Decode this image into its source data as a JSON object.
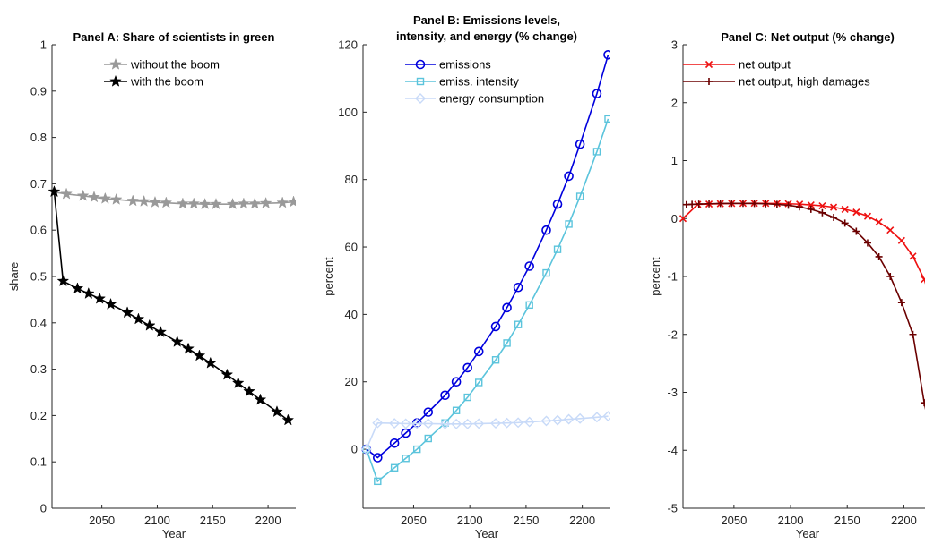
{
  "chart_data": [
    {
      "type": "line",
      "title": "Panel A: Share of scientists in green",
      "xlabel": "Year",
      "ylabel": "share",
      "xlim": [
        2005,
        2225
      ],
      "ylim": [
        0,
        1
      ],
      "xticks": [
        2050,
        2100,
        2150,
        2200
      ],
      "yticks": [
        0,
        0.1,
        0.2,
        0.3,
        0.4,
        0.5,
        0.6,
        0.7,
        0.8,
        0.9,
        1
      ],
      "ytick_labels": [
        "0",
        "0.1",
        "0.2",
        "0.3",
        "0.4",
        "0.5",
        "0.6",
        "0.7",
        "0.8",
        "0.9",
        "1"
      ],
      "legend_position": "top",
      "series": [
        {
          "name": "without the boom",
          "color": "#999999",
          "marker": "star",
          "x": [
            2007,
            2018,
            2033,
            2043,
            2053,
            2063,
            2078,
            2088,
            2098,
            2108,
            2123,
            2133,
            2143,
            2153,
            2168,
            2178,
            2188,
            2198,
            2213,
            2223
          ],
          "y": [
            0.682,
            0.678,
            0.674,
            0.671,
            0.668,
            0.666,
            0.663,
            0.662,
            0.66,
            0.659,
            0.657,
            0.657,
            0.656,
            0.656,
            0.656,
            0.657,
            0.657,
            0.658,
            0.659,
            0.661
          ]
        },
        {
          "name": "with the boom",
          "color": "#000000",
          "marker": "star",
          "x": [
            2007,
            2015,
            2028,
            2038,
            2048,
            2058,
            2073,
            2083,
            2093,
            2103,
            2118,
            2128,
            2138,
            2148,
            2163,
            2173,
            2183,
            2193,
            2208,
            2218
          ],
          "y": [
            0.683,
            0.49,
            0.474,
            0.463,
            0.452,
            0.44,
            0.422,
            0.408,
            0.394,
            0.38,
            0.359,
            0.344,
            0.329,
            0.313,
            0.288,
            0.27,
            0.252,
            0.234,
            0.208,
            0.19
          ]
        }
      ]
    },
    {
      "type": "line",
      "title": "Panel B: Emissions levels, intensity, and energy (% change)",
      "title_lines": [
        "Panel B: Emissions levels,",
        "intensity, and energy (% change)"
      ],
      "xlabel": "Year",
      "ylabel": "percent",
      "xlim": [
        2005,
        2225
      ],
      "ylim": [
        -17.5,
        120
      ],
      "xticks": [
        2050,
        2100,
        2150,
        2200
      ],
      "yticks": [
        0,
        20,
        40,
        60,
        80,
        100,
        120
      ],
      "ytick_labels": [
        "0",
        "20",
        "40",
        "60",
        "80",
        "100",
        "120"
      ],
      "legend_position": "top-left",
      "series": [
        {
          "name": "emissions",
          "color": "#0000dd",
          "marker": "circle",
          "x": [
            2008,
            2018,
            2033,
            2043,
            2053,
            2063,
            2078,
            2088,
            2098,
            2108,
            2123,
            2133,
            2143,
            2153,
            2168,
            2178,
            2188,
            2198,
            2213,
            2223
          ],
          "y": [
            0,
            -2.5,
            1.8,
            4.8,
            7.8,
            11,
            16,
            20,
            24.2,
            29,
            36.4,
            42,
            48,
            54.3,
            65,
            72.7,
            81,
            90.5,
            105.5,
            117
          ]
        },
        {
          "name": "emiss. intensity",
          "color": "#5bc4dc",
          "marker": "square",
          "x": [
            2008,
            2018,
            2033,
            2043,
            2053,
            2063,
            2078,
            2088,
            2098,
            2108,
            2123,
            2133,
            2143,
            2153,
            2168,
            2178,
            2188,
            2198,
            2213,
            2223
          ],
          "y": [
            0,
            -9.5,
            -5.5,
            -2.7,
            0,
            3.2,
            7.8,
            11.5,
            15.4,
            19.8,
            26.5,
            31.5,
            37,
            42.8,
            52.3,
            59.3,
            66.8,
            75,
            88.3,
            98
          ]
        },
        {
          "name": "energy consumption",
          "color": "#c8daf8",
          "marker": "diamond",
          "x": [
            2008,
            2018,
            2033,
            2043,
            2053,
            2063,
            2078,
            2088,
            2098,
            2108,
            2123,
            2133,
            2143,
            2153,
            2168,
            2178,
            2188,
            2198,
            2213,
            2223
          ],
          "y": [
            0,
            7.8,
            7.7,
            7.6,
            7.6,
            7.6,
            7.5,
            7.5,
            7.5,
            7.6,
            7.7,
            7.8,
            7.9,
            8.1,
            8.4,
            8.6,
            8.9,
            9.1,
            9.5,
            9.8
          ]
        }
      ]
    },
    {
      "type": "line",
      "title": "Panel C: Net output (% change)",
      "xlabel": "Year",
      "ylabel": "percent",
      "xlim": [
        2005,
        2225
      ],
      "ylim": [
        -5,
        3
      ],
      "xticks": [
        2050,
        2100,
        2150,
        2200
      ],
      "yticks": [
        -5,
        -4,
        -3,
        -2,
        -1,
        0,
        1,
        2,
        3
      ],
      "ytick_labels": [
        "-5",
        "-4",
        "-3",
        "-2",
        "-1",
        "0",
        "1",
        "2",
        "3"
      ],
      "legend_position": "top-left",
      "series": [
        {
          "name": "net output",
          "color": "#ee1111",
          "marker": "x",
          "x": [
            2005,
            2018,
            2028,
            2038,
            2048,
            2058,
            2068,
            2078,
            2088,
            2098,
            2108,
            2118,
            2128,
            2138,
            2148,
            2158,
            2168,
            2178,
            2188,
            2198,
            2208,
            2218,
            2225
          ],
          "y": [
            0,
            0.245,
            0.25,
            0.255,
            0.26,
            0.262,
            0.263,
            0.262,
            0.26,
            0.255,
            0.248,
            0.235,
            0.22,
            0.195,
            0.16,
            0.11,
            0.04,
            -0.06,
            -0.2,
            -0.38,
            -0.65,
            -1.05,
            -1.5
          ]
        },
        {
          "name": "net output, high damages",
          "color": "#6b0000",
          "marker": "plus",
          "x": [
            2008,
            2013,
            2019,
            2028,
            2038,
            2048,
            2058,
            2068,
            2078,
            2088,
            2098,
            2108,
            2118,
            2128,
            2138,
            2148,
            2158,
            2168,
            2178,
            2188,
            2198,
            2208,
            2218,
            2223
          ],
          "y": [
            0.24,
            0.245,
            0.25,
            0.255,
            0.26,
            0.262,
            0.262,
            0.26,
            0.255,
            0.245,
            0.23,
            0.2,
            0.16,
            0.1,
            0.02,
            -0.08,
            -0.22,
            -0.42,
            -0.66,
            -1.0,
            -1.45,
            -2.0,
            -3.18,
            -3.65
          ]
        }
      ]
    }
  ]
}
